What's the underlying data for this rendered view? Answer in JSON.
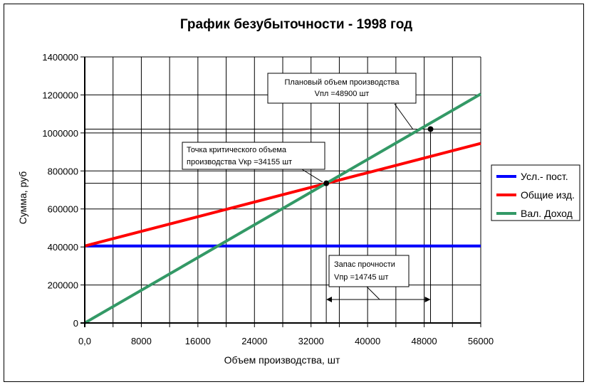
{
  "chart_data": {
    "type": "line",
    "title": "График безубыточности - 1998 год",
    "xlabel": "Объем производства, шт",
    "ylabel": "Сумма, руб",
    "xlim": [
      0,
      56000
    ],
    "ylim": [
      0,
      1400000
    ],
    "x_ticks": [
      0,
      8000,
      16000,
      24000,
      32000,
      40000,
      48000,
      56000
    ],
    "x_tick_labels": [
      "0,0",
      "8000",
      "16000",
      "24000",
      "32000",
      "40000",
      "48000",
      "56000"
    ],
    "y_ticks": [
      0,
      200000,
      400000,
      600000,
      800000,
      1000000,
      1200000,
      1400000
    ],
    "y_tick_labels": [
      "0",
      "200000",
      "400000",
      "600000",
      "800000",
      "1000000",
      "1200000",
      "1400000"
    ],
    "grid": true,
    "legend_position": "right",
    "series": [
      {
        "name": "Усл.- пост.",
        "color": "#0000ff",
        "x": [
          0,
          56000
        ],
        "y": [
          405000,
          405000
        ]
      },
      {
        "name": "Общие изд.",
        "color": "#ff0000",
        "x": [
          0,
          56000
        ],
        "y": [
          405000,
          945000
        ]
      },
      {
        "name": "Вал. Доход",
        "color": "#339966",
        "x": [
          0,
          56000
        ],
        "y": [
          0,
          1205000
        ]
      }
    ],
    "points": [
      {
        "name": "critical",
        "x": 34155,
        "y": 735000
      },
      {
        "name": "planned",
        "x": 48900,
        "y": 1020000
      }
    ],
    "annotations": {
      "critical_line1": "Точка критического объема",
      "critical_line2": "производства Vкр =34155 шт",
      "planned_line1": "Плановый объем производства",
      "planned_line2": "Vпл =48900 шт",
      "margin_line1": "Запас прочности",
      "margin_line2": "Vпр =14745 шт"
    }
  }
}
